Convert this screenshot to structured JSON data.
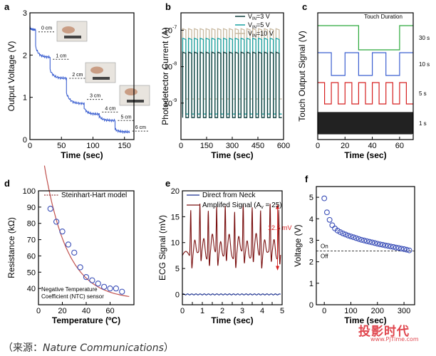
{
  "caption": {
    "prefix": "（来源：",
    "source": "Nature Communications",
    "suffix": "）"
  },
  "watermark": {
    "text": "投影时代",
    "url": "www.PjTime.com"
  },
  "colors": {
    "axis": "#000000",
    "blue_trace": "#3b5fd0",
    "navy": "#1a2f8f",
    "dark_red": "#7a1010",
    "red": "#d62020",
    "green": "#2aa83a",
    "teal": "#17a1a0",
    "tan": "#c8b9a0",
    "dark_teal": "#0d3d3c",
    "pink_line": "#c0504d",
    "marker_blue": "#3b4fb8",
    "watermark": "#e0464e"
  },
  "chart_data": [
    {
      "id": "a",
      "panel_label": "a",
      "type": "line",
      "xlabel": "Time (sec)",
      "ylabel": "Output Voltage (V)",
      "xlim": [
        0,
        165
      ],
      "ylim": [
        0,
        3
      ],
      "xticks": [
        0,
        50,
        100,
        150
      ],
      "yticks": [
        0,
        1,
        2,
        3
      ],
      "annotations": [
        "0 cm",
        "1 cm",
        "2 cm",
        "3 cm",
        "4 cm",
        "5 cm",
        "6 cm"
      ],
      "steps": [
        {
          "t0": 0,
          "t1": 9,
          "v0": 2.65,
          "v1": 2.6
        },
        {
          "t0": 9,
          "t1": 32,
          "v0": 2.2,
          "v1": 1.95
        },
        {
          "t0": 32,
          "t1": 58,
          "v0": 1.65,
          "v1": 1.45
        },
        {
          "t0": 58,
          "t1": 86,
          "v0": 1.1,
          "v1": 0.85
        },
        {
          "t0": 86,
          "t1": 110,
          "v0": 0.75,
          "v1": 0.6
        },
        {
          "t0": 110,
          "t1": 135,
          "v0": 0.55,
          "v1": 0.45
        },
        {
          "t0": 135,
          "t1": 158,
          "v0": 0.25,
          "v1": 0.18
        }
      ],
      "level_markers": [
        2.55,
        1.9,
        1.45,
        0.95,
        0.65,
        0.45,
        0.2
      ]
    },
    {
      "id": "b",
      "panel_label": "b",
      "type": "line",
      "xlabel": "Time (sec)",
      "ylabel": "Photodetector Current (A)",
      "xlim": [
        0,
        600
      ],
      "ylim": [
        1e-10,
        3e-07
      ],
      "yscale": "log",
      "xticks": [
        0,
        150,
        300,
        450,
        600
      ],
      "xtick_labels": [
        "0",
        "150",
        "300",
        "450",
        "600"
      ],
      "yticks": [
        1e-09,
        1e-08,
        1e-07
      ],
      "ytick_labels": [
        "10",
        "10",
        "10"
      ],
      "ytick_exps": [
        "-9",
        "-8",
        "-7"
      ],
      "legend": [
        {
          "label_main": "V",
          "label_sub": "IN",
          "label_rest": "=3 V"
        },
        {
          "label_main": "V",
          "label_sub": "IN",
          "label_rest": "=5 V"
        },
        {
          "label_main": "V",
          "label_sub": "IN",
          "label_rest": "=10 V"
        }
      ],
      "series": [
        {
          "on": 2.5e-08,
          "off": 4e-10
        },
        {
          "on": 6e-08,
          "off": 5e-10
        },
        {
          "on": 1.1e-07,
          "off": 1.3e-09
        }
      ],
      "pulses": 17
    },
    {
      "id": "c",
      "panel_label": "c",
      "type": "line",
      "xlabel": "Time (sec)",
      "ylabel": "Touch Output Signal (V)",
      "xlim": [
        0,
        70
      ],
      "xticks": [
        0,
        20,
        40,
        60
      ],
      "title": "Touch Duration",
      "rows": [
        {
          "label": "30 s",
          "periods": [
            [
              0,
              30
            ],
            [
              60,
              70
            ]
          ]
        },
        {
          "label": "10 s",
          "periods": [
            [
              0,
              10
            ],
            [
              20,
              30
            ],
            [
              40,
              50
            ],
            [
              60,
              70
            ]
          ]
        },
        {
          "label": "5 s",
          "periods": [
            [
              0,
              5
            ],
            [
              10,
              15
            ],
            [
              20,
              25
            ],
            [
              30,
              35
            ],
            [
              40,
              45
            ],
            [
              50,
              55
            ],
            [
              60,
              65
            ]
          ]
        },
        {
          "label": "1 s"
        }
      ]
    },
    {
      "id": "d",
      "panel_label": "d",
      "type": "scatter",
      "xlabel": "Temperature (ºC)",
      "ylabel": "Resistance (kΩ)",
      "xlim": [
        0,
        80
      ],
      "ylim": [
        30,
        100
      ],
      "xticks": [
        0,
        20,
        40,
        60
      ],
      "yticks": [
        40,
        50,
        60,
        70,
        80,
        90,
        100
      ],
      "legend": "Steinhart-Hart model",
      "annotation_line1": "Negative Temperature",
      "annotation_line2": "Coefficient (NTC) sensor",
      "x": [
        10,
        15,
        20,
        25,
        30,
        35,
        40,
        45,
        50,
        55,
        60,
        65,
        70
      ],
      "values": [
        89,
        81,
        75,
        67,
        62,
        53,
        47,
        45,
        43,
        41,
        40,
        40,
        38
      ],
      "model": {
        "a": 140,
        "k": 0.052,
        "c": 33
      }
    },
    {
      "id": "e",
      "panel_label": "e",
      "type": "line",
      "xlabel": "Time (sec)",
      "ylabel": "ECG Signal (mV)",
      "xlim": [
        0,
        5
      ],
      "ylim": [
        -2,
        20
      ],
      "xticks": [
        0,
        0.5,
        1,
        1.5,
        2,
        2.5,
        3,
        3.5,
        4,
        4.5,
        5
      ],
      "xtick_labels": [
        "0",
        "",
        "1",
        "",
        "2",
        "",
        "3",
        "",
        "4",
        "",
        "5"
      ],
      "yticks": [
        0,
        5,
        10,
        15,
        20
      ],
      "legend": [
        {
          "label": "Direct from Neck"
        },
        {
          "label": "Amplifed Signal (A",
          "sub": "v",
          "rest": " = 25)"
        }
      ],
      "annotation": "12.5 mV",
      "beats": [
        0.42,
        0.88,
        1.3,
        1.72,
        2.15,
        2.62,
        3.05,
        3.5,
        3.92,
        4.4,
        4.83
      ],
      "baseline": 7.5,
      "peak": 17
    },
    {
      "id": "f",
      "panel_label": "f",
      "type": "scatter",
      "xlabel": "Time (sec)",
      "ylabel": "Voltage (V)",
      "xlim": [
        -30,
        340
      ],
      "ylim": [
        0,
        5.5
      ],
      "xticks": [
        0,
        100,
        200,
        300
      ],
      "yticks": [
        0,
        1,
        2,
        3,
        4,
        5
      ],
      "threshold": 2.5,
      "on_label": "On",
      "off_label": "Off",
      "x": [
        0,
        10,
        20,
        30,
        40,
        50,
        60,
        70,
        80,
        90,
        100,
        110,
        120,
        130,
        140,
        150,
        160,
        170,
        180,
        190,
        200,
        210,
        220,
        230,
        240,
        250,
        260,
        270,
        280,
        290,
        300,
        310,
        320
      ],
      "values": [
        4.95,
        4.3,
        3.95,
        3.7,
        3.55,
        3.45,
        3.38,
        3.32,
        3.27,
        3.22,
        3.18,
        3.14,
        3.1,
        3.06,
        3.02,
        2.99,
        2.96,
        2.93,
        2.9,
        2.87,
        2.84,
        2.81,
        2.79,
        2.76,
        2.74,
        2.71,
        2.69,
        2.66,
        2.64,
        2.61,
        2.59,
        2.56,
        2.53
      ]
    }
  ]
}
